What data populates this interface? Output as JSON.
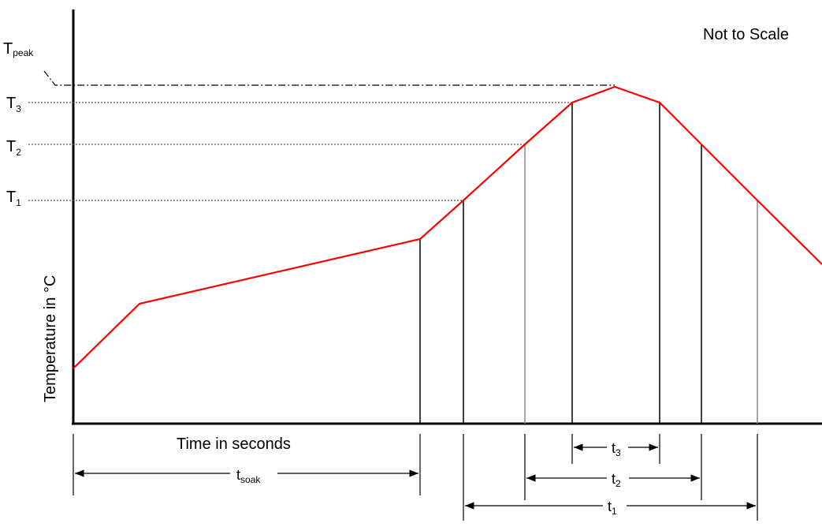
{
  "annotation": "Not to Scale",
  "y_axis_label": "Temperature in °C",
  "x_axis_label": "Time in seconds",
  "temperature_levels": [
    {
      "id": "peak",
      "main": "T",
      "sub": "peak"
    },
    {
      "id": "t3",
      "main": "T",
      "sub": "3"
    },
    {
      "id": "t2",
      "main": "T",
      "sub": "2"
    },
    {
      "id": "t1",
      "main": "T",
      "sub": "1"
    }
  ],
  "intervals": [
    {
      "id": "soak",
      "main": "t",
      "sub": "soak"
    },
    {
      "id": "i3",
      "main": "t",
      "sub": "3"
    },
    {
      "id": "i2",
      "main": "t",
      "sub": "2"
    },
    {
      "id": "i1",
      "main": "t",
      "sub": "1"
    }
  ],
  "colors": {
    "profile": "#ff0000",
    "lines": "#000000",
    "guides": "#8a8a8a"
  }
}
